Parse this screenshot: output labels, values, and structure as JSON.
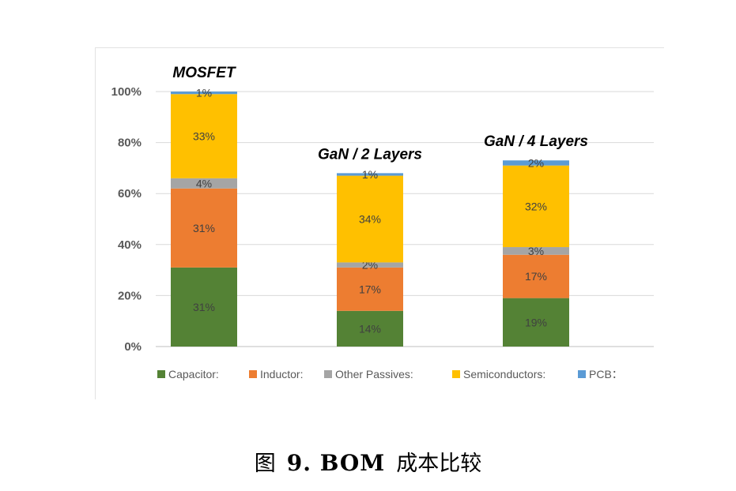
{
  "chart_data": {
    "type": "bar",
    "stacked": true,
    "categories": [
      "MOSFET",
      "GaN / 2 Layers",
      "GaN / 4 Layers"
    ],
    "series": [
      {
        "name": "Capacitor:",
        "values": [
          31,
          14,
          19
        ],
        "labels": [
          "31%",
          "14%",
          "19%"
        ],
        "color": "#548235"
      },
      {
        "name": "Inductor:",
        "values": [
          31,
          17,
          17
        ],
        "labels": [
          "31%",
          "17%",
          "17%"
        ],
        "color": "#ed7d31"
      },
      {
        "name": "Other Passives:",
        "values": [
          4,
          2,
          3
        ],
        "labels": [
          "4%",
          "2%",
          "3%"
        ],
        "color": "#a5a5a5"
      },
      {
        "name": "Semiconductors:",
        "values": [
          33,
          34,
          32
        ],
        "labels": [
          "33%",
          "34%",
          "32%"
        ],
        "color": "#ffc000"
      },
      {
        "name": "PCB：",
        "values": [
          1,
          1,
          2
        ],
        "labels": [
          "1%",
          "1%",
          "2%"
        ],
        "color": "#5b9bd5"
      }
    ],
    "ylim": [
      0,
      100
    ],
    "yticks": [
      "0%",
      "20%",
      "40%",
      "60%",
      "80%",
      "100%"
    ],
    "grid": true,
    "legend_position": "bottom"
  },
  "caption": {
    "prefix": "图",
    "number": "9. BOM",
    "suffix": "成本比较"
  }
}
